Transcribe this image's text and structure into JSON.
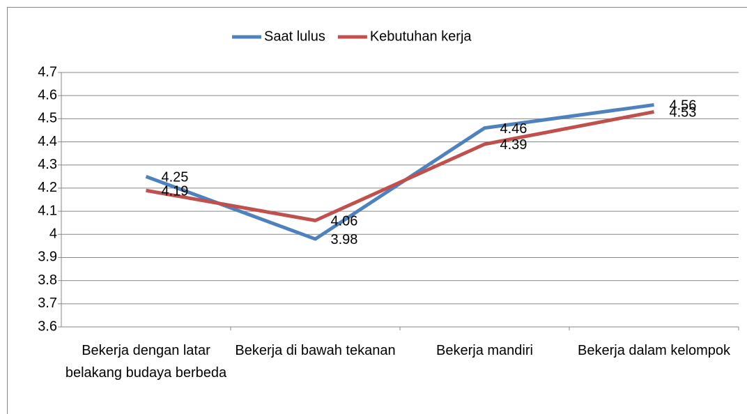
{
  "chart_data": {
    "type": "line",
    "categories": [
      "Bekerja dengan latar belakang budaya berbeda",
      "Bekerja di bawah tekanan",
      "Bekerja mandiri",
      "Bekerja dalam kelompok"
    ],
    "series": [
      {
        "name": "Saat lulus",
        "color": "#4f81bd",
        "values": [
          4.25,
          3.98,
          4.46,
          4.56
        ]
      },
      {
        "name": "Kebutuhan kerja",
        "color": "#c0504d",
        "values": [
          4.19,
          4.06,
          4.39,
          4.53
        ]
      }
    ],
    "ylim": [
      3.6,
      4.7
    ],
    "yticks": [
      3.6,
      3.7,
      3.8,
      3.9,
      4,
      4.1,
      4.2,
      4.3,
      4.4,
      4.5,
      4.6,
      4.7
    ],
    "grid": true,
    "legend": "top",
    "data_labels": true
  }
}
